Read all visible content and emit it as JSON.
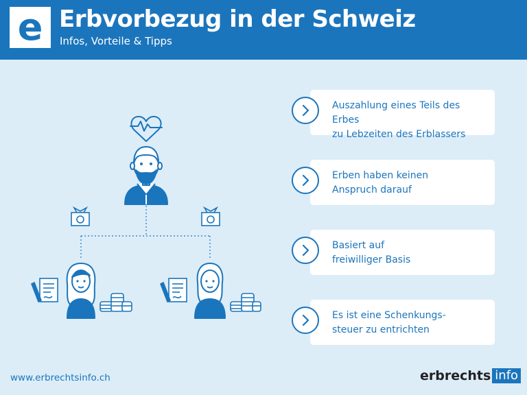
{
  "header": {
    "logo_letter": "e",
    "title": "Erbvorbezug in der Schweiz",
    "subtitle": "Infos, Vorteile & Tipps"
  },
  "cards": [
    {
      "text": "Auszahlung eines Teils des Erbes\nzu Lebzeiten des Erblassers",
      "icon": "chevron-right-icon"
    },
    {
      "text": "Erben haben keinen\nAnspruch darauf",
      "icon": "chevron-right-icon"
    },
    {
      "text": "Basiert auf\nfreiwilliger Basis",
      "icon": "chevron-right-icon"
    },
    {
      "text": "Es ist eine Schenkungs-\nsteuer zu entrichten",
      "icon": "chevron-right-icon"
    }
  ],
  "footer": {
    "url": "www.erbrechtsinfo.ch",
    "brand_name": "erbrechts",
    "brand_suffix": "info"
  },
  "colors": {
    "primary": "#1b75bc",
    "background": "#dcedf8",
    "card": "#ffffff"
  }
}
